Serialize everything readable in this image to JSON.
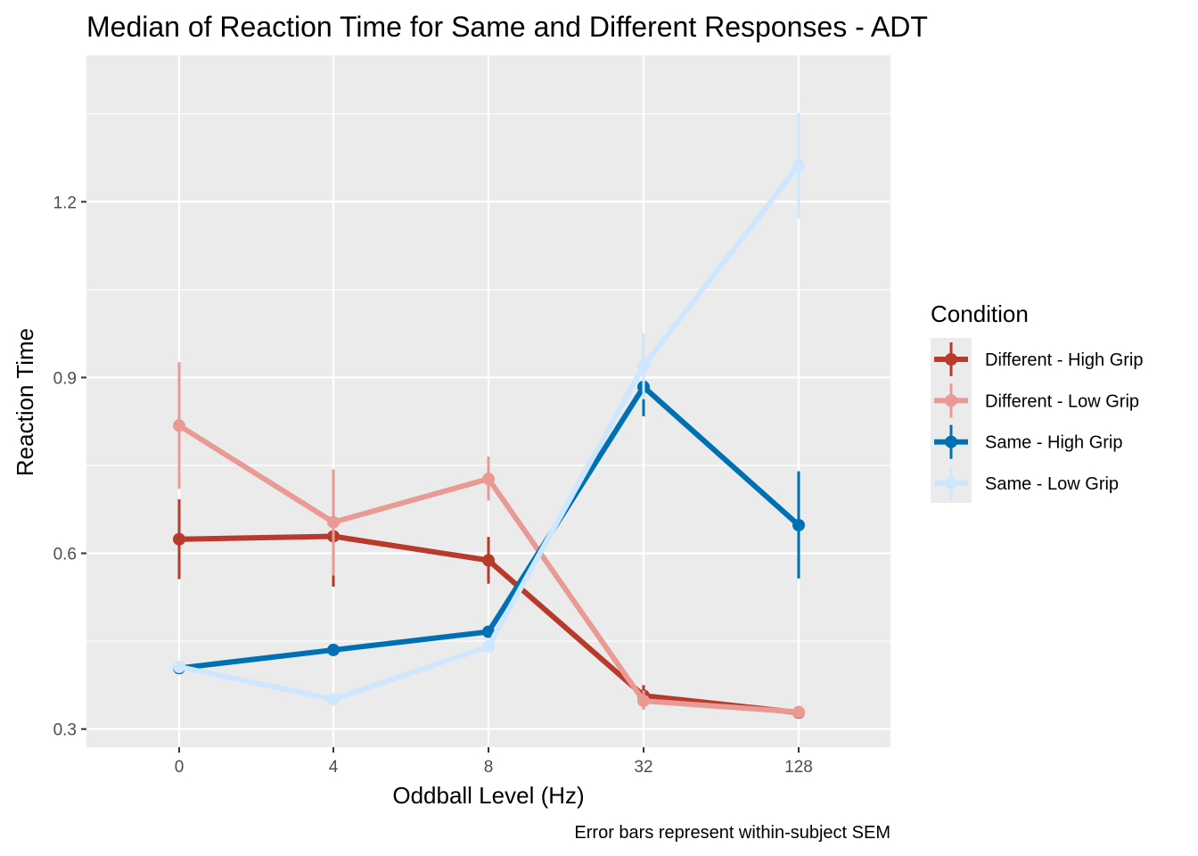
{
  "chart_data": {
    "type": "line",
    "title": "Median of Reaction Time for Same and Different Responses - ADT",
    "xlabel": "Oddball Level (Hz)",
    "ylabel": "Reaction Time",
    "caption": "Error bars represent within-subject SEM",
    "categories": [
      "0",
      "4",
      "8",
      "32",
      "128"
    ],
    "ylim": [
      0.269,
      1.45
    ],
    "yticks": [
      0.3,
      0.6,
      0.9,
      1.2
    ],
    "y_tick_labels": [
      "0.3",
      "0.6",
      "0.9",
      "1.2"
    ],
    "grid": true,
    "legend": {
      "title": "Condition",
      "position": "right"
    },
    "series": [
      {
        "name": "Different - High Grip",
        "color": "#B83A2B",
        "values": [
          0.624,
          0.629,
          0.588,
          0.357,
          0.328
        ],
        "err_low": [
          0.556,
          0.543,
          0.548,
          0.34,
          0.322
        ],
        "err_high": [
          0.692,
          0.714,
          0.628,
          0.375,
          0.335
        ]
      },
      {
        "name": "Different - Low Grip",
        "color": "#E99A95",
        "values": [
          0.818,
          0.653,
          0.727,
          0.348,
          0.329
        ],
        "err_low": [
          0.71,
          0.562,
          0.69,
          0.333,
          0.322
        ],
        "err_high": [
          0.926,
          0.743,
          0.765,
          0.366,
          0.336
        ]
      },
      {
        "name": "Same - High Grip",
        "color": "#0070B5",
        "values": [
          0.404,
          0.435,
          0.466,
          0.884,
          0.648
        ],
        "err_low": [
          0.398,
          0.43,
          0.458,
          0.834,
          0.557
        ],
        "err_high": [
          0.41,
          0.44,
          0.474,
          0.934,
          0.74
        ]
      },
      {
        "name": "Same - Low Grip",
        "color": "#CFE6FF",
        "values": [
          0.406,
          0.351,
          0.441,
          0.92,
          1.262
        ],
        "err_low": [
          0.4,
          0.345,
          0.433,
          0.863,
          1.172
        ],
        "err_high": [
          0.412,
          0.357,
          0.449,
          0.976,
          1.352
        ]
      }
    ]
  }
}
